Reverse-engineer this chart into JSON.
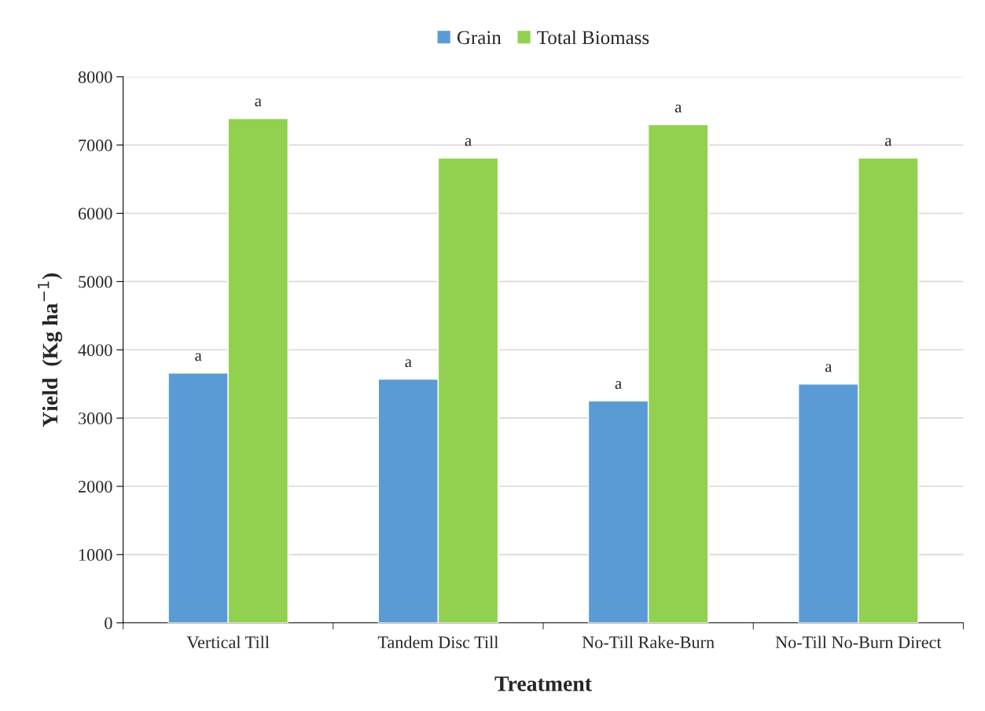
{
  "chart_data": {
    "type": "bar",
    "xlabel": "Treatment",
    "ylabel": "Yield  (Kg ha$^{−1}$)",
    "categories": [
      "Vertical Till",
      "Tandem Disc Till",
      "No-Till Rake-Burn",
      "No-Till No-Burn Direct"
    ],
    "series": [
      {
        "name": "Grain",
        "color": "#5b9bd5",
        "values": [
          3660,
          3570,
          3250,
          3500
        ],
        "value_labels": [
          "a",
          "a",
          "a",
          "a"
        ]
      },
      {
        "name": "Total Biomass",
        "color": "#92d050",
        "values": [
          7390,
          6810,
          7300,
          6810
        ],
        "value_labels": [
          "a",
          "a",
          "a",
          "a"
        ]
      }
    ],
    "ylim": [
      0,
      8000
    ],
    "yticks": [
      0,
      1000,
      2000,
      3000,
      4000,
      5000,
      6000,
      7000,
      8000
    ],
    "grid": "y",
    "legend": "top"
  }
}
